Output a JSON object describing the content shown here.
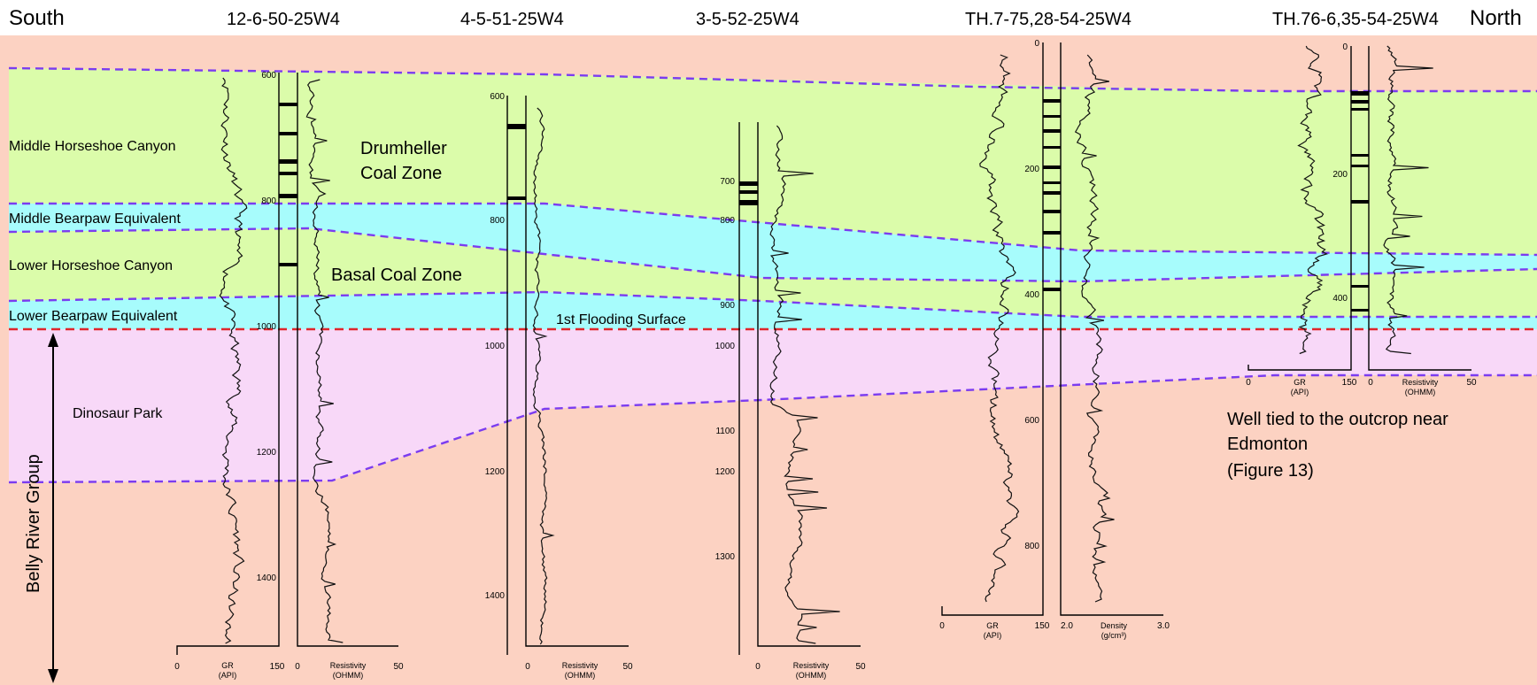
{
  "orientation": {
    "left": "South",
    "right": "North"
  },
  "wells": [
    {
      "id": "12-6-50-25W4",
      "depth_ticks": [
        "600",
        "800",
        "1000",
        "1200",
        "1400"
      ],
      "gr": {
        "label": "GR",
        "unit": "(API)",
        "min": "0",
        "max": "150"
      },
      "res": {
        "label": "Resistivity",
        "unit": "(OHMM)",
        "min": "0",
        "max": "50"
      }
    },
    {
      "id": "4-5-51-25W4",
      "depth_ticks": [
        "600",
        "800",
        "1000",
        "1200",
        "1400"
      ],
      "res": {
        "label": "Resistivity",
        "unit": "(OHMM)",
        "min": "0",
        "max": "50"
      }
    },
    {
      "id": "3-5-52-25W4",
      "depth_ticks": [
        "700",
        "800",
        "900",
        "1000",
        "1100",
        "1200",
        "1300"
      ],
      "res": {
        "label": "Resistivity",
        "unit": "(OHMM)",
        "min": "0",
        "max": "50"
      }
    },
    {
      "id": "TH.7-75,28-54-25W4",
      "depth_ticks": [
        "0",
        "200",
        "400",
        "600",
        "800"
      ],
      "gr": {
        "label": "GR",
        "unit": "(API)",
        "min": "0",
        "max": "150"
      },
      "den": {
        "label": "Density",
        "unit": "(g/cm³)",
        "min": "2.0",
        "max": "3.0"
      }
    },
    {
      "id": "TH.76-6,35-54-25W4",
      "depth_ticks": [
        "0",
        "200",
        "400"
      ],
      "gr": {
        "label": "GR",
        "unit": "(API)",
        "min": "0",
        "max": "150"
      },
      "res": {
        "label": "Resistivity",
        "unit": "(OHMM)",
        "min": "0",
        "max": "50"
      }
    }
  ],
  "zones": {
    "middle_horseshoe": "Middle Horseshoe Canyon",
    "middle_bearpaw": "Middle Bearpaw Equivalent",
    "lower_horseshoe": "Lower Horseshoe Canyon",
    "lower_bearpaw": "Lower Bearpaw Equivalent",
    "dinosaur_park": "Dinosaur Park",
    "belly_river": "Belly River Group"
  },
  "coal_zones": {
    "drumheller_1": "Drumheller",
    "drumheller_2": "Coal Zone",
    "basal": "Basal Coal Zone"
  },
  "surfaces": {
    "flooding": "1st Flooding Surface"
  },
  "note": {
    "line1": "Well tied to the outcrop near",
    "line2": "Edmonton",
    "line3": "(Figure 13)"
  },
  "colors": {
    "background": "#fcd2c2",
    "horseshoe": "#dbfcaa",
    "bearpaw": "#a7fcfc",
    "dinosaur": "#f8d8f8",
    "dash": "#7b3cf0",
    "datum": "#e0262b"
  }
}
